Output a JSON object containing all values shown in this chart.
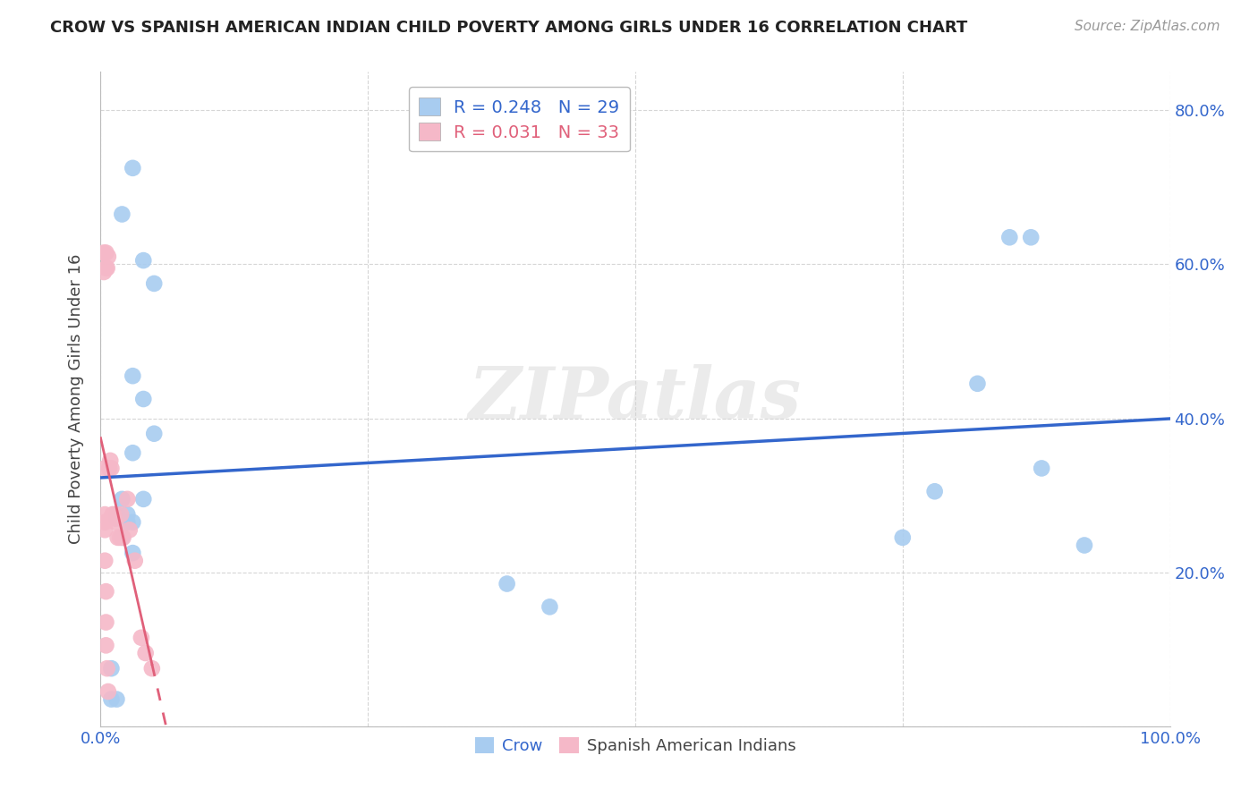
{
  "title": "CROW VS SPANISH AMERICAN INDIAN CHILD POVERTY AMONG GIRLS UNDER 16 CORRELATION CHART",
  "source": "Source: ZipAtlas.com",
  "ylabel": "Child Poverty Among Girls Under 16",
  "xlim": [
    0.0,
    1.0
  ],
  "ylim": [
    0.0,
    0.85
  ],
  "x_ticks": [
    0.0,
    0.25,
    0.5,
    0.75,
    1.0
  ],
  "x_tick_labels": [
    "0.0%",
    "",
    "",
    "",
    "100.0%"
  ],
  "y_ticks": [
    0.0,
    0.2,
    0.4,
    0.6,
    0.8
  ],
  "y_tick_labels_right": [
    "",
    "20.0%",
    "40.0%",
    "60.0%",
    "80.0%"
  ],
  "crow_color": "#A8CCF0",
  "crow_line_color": "#3366CC",
  "spanish_color": "#F5B8C8",
  "spanish_line_color": "#E0607A",
  "crow_R": 0.248,
  "crow_N": 29,
  "spanish_R": 0.031,
  "spanish_N": 33,
  "watermark": "ZIPatlas",
  "crow_x": [
    0.02,
    0.03,
    0.04,
    0.05,
    0.03,
    0.04,
    0.05,
    0.03,
    0.02,
    0.04,
    0.02,
    0.03,
    0.015,
    0.38,
    0.42,
    0.75,
    0.78,
    0.82,
    0.87,
    0.85,
    0.015,
    0.025,
    0.01,
    0.01,
    0.015,
    0.025,
    0.03,
    0.88,
    0.92
  ],
  "crow_y": [
    0.665,
    0.725,
    0.605,
    0.575,
    0.455,
    0.425,
    0.38,
    0.355,
    0.295,
    0.295,
    0.245,
    0.265,
    0.27,
    0.185,
    0.155,
    0.245,
    0.305,
    0.445,
    0.635,
    0.635,
    0.275,
    0.265,
    0.075,
    0.035,
    0.035,
    0.275,
    0.225,
    0.335,
    0.235
  ],
  "spanish_x": [
    0.005,
    0.005,
    0.006,
    0.007,
    0.008,
    0.009,
    0.01,
    0.011,
    0.012,
    0.013,
    0.014,
    0.016,
    0.018,
    0.019,
    0.021,
    0.025,
    0.027,
    0.032,
    0.038,
    0.042,
    0.048,
    0.003,
    0.003,
    0.004,
    0.004,
    0.004,
    0.004,
    0.004,
    0.005,
    0.005,
    0.005,
    0.006,
    0.007
  ],
  "spanish_y": [
    0.615,
    0.595,
    0.595,
    0.61,
    0.335,
    0.345,
    0.335,
    0.275,
    0.275,
    0.27,
    0.265,
    0.245,
    0.245,
    0.275,
    0.245,
    0.295,
    0.255,
    0.215,
    0.115,
    0.095,
    0.075,
    0.615,
    0.59,
    0.335,
    0.275,
    0.265,
    0.255,
    0.215,
    0.175,
    0.135,
    0.105,
    0.075,
    0.045
  ],
  "background_color": "#FFFFFF",
  "grid_color": "#CCCCCC"
}
